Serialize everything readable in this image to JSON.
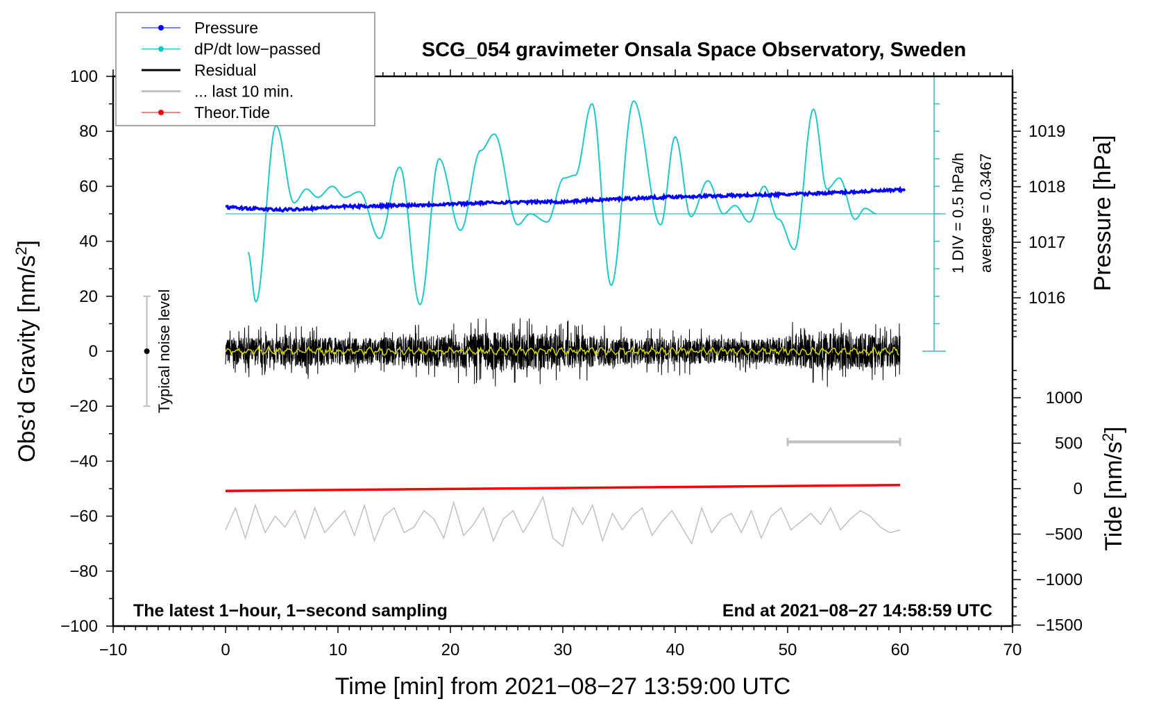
{
  "chart_data": {
    "type": "line",
    "title": "SCG_054 gravimeter Onsala Space Observatory, Sweden",
    "xlabel": "Time [min] from 2021−08−27 13:59:00 UTC",
    "ylabel_left": "Obs’d Gravity [nm/s",
    "ylabel_left_sup": "2",
    "ylabel_left_end": "]",
    "ylabel_right_pressure": "Pressure [hPa]",
    "ylabel_right_tide": "Tide [nm/s",
    "ylabel_right_tide_sup": "2",
    "ylabel_right_tide_end": "]",
    "xlim": [
      -10,
      70
    ],
    "ylim": [
      -100,
      100
    ],
    "x_ticks": [
      "−10",
      "0",
      "10",
      "20",
      "30",
      "40",
      "50",
      "60",
      "70"
    ],
    "y_ticks": [
      "100",
      "80",
      "60",
      "40",
      "20",
      "0",
      "−20",
      "−40",
      "−60",
      "−80",
      "−100"
    ],
    "pressure_ticks": [
      "1019",
      "1018",
      "1017",
      "1016"
    ],
    "tide_ticks": [
      "1000",
      "500",
      "0",
      "−500",
      "−1000",
      "−1500"
    ],
    "legend": {
      "placement": "top-left",
      "entries": [
        {
          "label": "Pressure",
          "color": "#0000ff",
          "marker": true
        },
        {
          "label": "dP/dt low−passed",
          "color": "#00c8c8",
          "marker": true
        },
        {
          "label": "Residual",
          "color": "#000000",
          "marker": false
        },
        {
          "label": "... last 10 min.",
          "color": "#c0c0c0",
          "marker": false
        },
        {
          "label": "Theor.Tide",
          "color": "#ff0000",
          "marker": true
        }
      ]
    },
    "annotations": {
      "bottom_left": "The latest 1−hour, 1−second sampling",
      "bottom_right": "End at 2021−08−27 14:58:59 UTC",
      "div_label": "1 DIV = 0.5 hPa/h",
      "average_label": "average = 0.3467",
      "noise_label": "Typical noise level"
    },
    "noise_level": {
      "x": -7,
      "low": -20,
      "high": 20,
      "center": 0
    },
    "last10_bar": {
      "x_start": 50,
      "x_end": 60,
      "y": -33
    },
    "dpdt_baseline_gravity_units": 50,
    "series": [
      {
        "name": "Pressure",
        "unit": "hPa",
        "color": "#0000ff",
        "x": [
          0,
          5,
          10,
          15,
          20,
          25,
          30,
          35,
          40,
          45,
          50,
          55,
          60
        ],
        "values": [
          1017.63,
          1017.58,
          1017.64,
          1017.66,
          1017.69,
          1017.72,
          1017.73,
          1017.78,
          1017.82,
          1017.84,
          1017.86,
          1017.9,
          1017.94
        ]
      },
      {
        "name": "dP/dt low-passed",
        "unit": "gravity-axis units",
        "color": "#1ec8c8",
        "x": [
          2.0,
          2.7,
          4.5,
          6.1,
          7.2,
          8.2,
          9.5,
          10.6,
          11.9,
          13.7,
          15.5,
          17.3,
          19.0,
          20.9,
          22.7,
          23.9,
          26.0,
          27.1,
          28.6,
          30.1,
          31.1,
          32.6,
          34.3,
          36.3,
          38.7,
          40.0,
          41.4,
          42.9,
          44.3,
          45.3,
          46.6,
          47.9,
          49.2,
          50.6,
          52.3,
          53.5,
          54.6,
          56.0,
          56.9,
          57.9
        ],
        "values": [
          36,
          18,
          82,
          54,
          59,
          56,
          60,
          56,
          58,
          41,
          67,
          17,
          70,
          44,
          73,
          79,
          46,
          50,
          47,
          63,
          64,
          90,
          24,
          91,
          46,
          78,
          49,
          62,
          50,
          53,
          47,
          60,
          48,
          37,
          88,
          59,
          63,
          48,
          52,
          50
        ]
      },
      {
        "name": "Residual",
        "unit": "nm/s2",
        "color": "#000000",
        "smoothed_color": "#d8d800",
        "x": [
          0,
          6,
          12,
          18,
          24,
          30,
          36,
          42,
          48,
          54,
          60
        ],
        "envelope": [
          6,
          7,
          6,
          7,
          9,
          8,
          6,
          6,
          6,
          9,
          7
        ]
      },
      {
        "name": "... last 10 min.",
        "unit": "gravity-axis units",
        "color": "#c0c0c0",
        "x_start": 0,
        "x_end": 60,
        "values": [
          -65,
          -57,
          -68,
          -56,
          -66,
          -60,
          -64,
          -58,
          -68,
          -57,
          -66,
          -62,
          -58,
          -67,
          -56,
          -69,
          -60,
          -57,
          -66,
          -64,
          -58,
          -61,
          -68,
          -55,
          -67,
          -63,
          -57,
          -69,
          -61,
          -58,
          -66,
          -60,
          -53,
          -68,
          -71,
          -57,
          -63,
          -56,
          -69,
          -59,
          -65,
          -60,
          -57,
          -67,
          -62,
          -58,
          -64,
          -70,
          -57,
          -66,
          -61,
          -59,
          -66,
          -58,
          -68,
          -60,
          -57,
          -65,
          -62,
          -59,
          -63,
          -57,
          -65,
          -61,
          -58,
          -60,
          -64,
          -66,
          -65
        ]
      },
      {
        "name": "Theor.Tide",
        "unit": "nm/s2",
        "color": "#ff0000",
        "x": [
          0,
          60
        ],
        "values": [
          -25,
          40
        ]
      }
    ]
  }
}
